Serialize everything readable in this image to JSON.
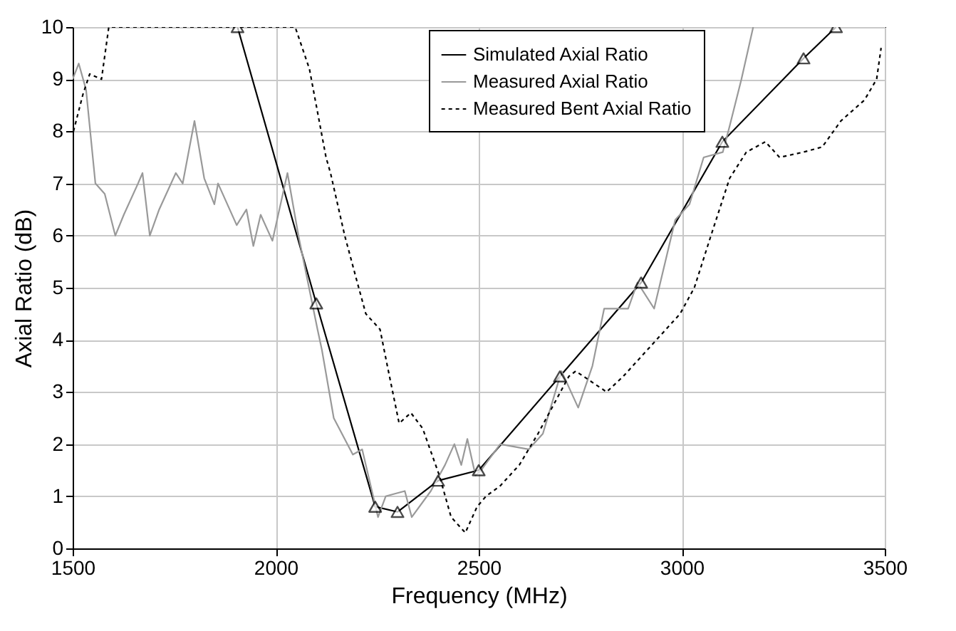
{
  "chart_data": {
    "type": "line",
    "xlabel": "Frequency (MHz)",
    "ylabel": "Axial Ratio (dB)",
    "xlim": [
      1500,
      3500
    ],
    "xticks": [
      1500,
      2000,
      2500,
      3000,
      3500
    ],
    "ylim": [
      0,
      10
    ],
    "yticks": [
      0,
      1,
      2,
      3,
      4,
      5,
      6,
      7,
      8,
      9,
      10
    ],
    "grid": true,
    "legend": "top right",
    "series": [
      {
        "name": "Simulated Axial Ratio",
        "color": "#000000",
        "line_style": "solid",
        "marker": "triangle",
        "x": [
          1906,
          2100,
          2245,
          2300,
          2400,
          2500,
          2700,
          2900,
          3100,
          3300,
          3380
        ],
        "values": [
          10,
          4.7,
          0.8,
          0.7,
          1.3,
          1.5,
          3.3,
          5.1,
          7.8,
          9.4,
          10
        ]
      },
      {
        "name": "Measured Axial Ratio",
        "color": "#999999",
        "line_style": "solid",
        "marker": "none",
        "x": [
          1500,
          1515,
          1533,
          1556,
          1579,
          1605,
          1626,
          1661,
          1672,
          1690,
          1713,
          1754,
          1771,
          1800,
          1824,
          1849,
          1858,
          1904,
          1928,
          1945,
          1963,
          1992,
          2029,
          2056,
          2103,
          2114,
          2143,
          2190,
          2213,
          2252,
          2271,
          2318,
          2335,
          2382,
          2417,
          2440,
          2457,
          2472,
          2492,
          2506,
          2553,
          2623,
          2658,
          2704,
          2745,
          2780,
          2809,
          2868,
          2891,
          2932,
          2984,
          3019,
          3054,
          3101,
          3118,
          3147,
          3176
        ],
        "values": [
          9.0,
          9.3,
          8.8,
          7.0,
          6.8,
          6.0,
          6.4,
          7.0,
          7.2,
          6.0,
          6.5,
          7.2,
          7.0,
          8.2,
          7.1,
          6.6,
          7.0,
          6.2,
          6.5,
          5.8,
          6.4,
          5.9,
          7.2,
          6.0,
          4.2,
          3.8,
          2.5,
          1.8,
          1.9,
          0.6,
          1.0,
          1.1,
          0.6,
          1.1,
          1.6,
          2.0,
          1.6,
          2.1,
          1.4,
          1.5,
          2.0,
          1.9,
          2.2,
          3.4,
          2.7,
          3.5,
          4.6,
          4.6,
          5.1,
          4.6,
          6.3,
          6.6,
          7.5,
          7.6,
          8.1,
          9.0,
          10
        ]
      },
      {
        "name": "Measured Bent Axial Ratio",
        "color": "#000000",
        "line_style": "dotted",
        "marker": "none",
        "x": [
          1502,
          1525,
          1542,
          1571,
          1589,
          2048,
          2083,
          2124,
          2135,
          2170,
          2201,
          2222,
          2257,
          2275,
          2304,
          2333,
          2362,
          2403,
          2432,
          2467,
          2496,
          2518,
          2553,
          2600,
          2646,
          2722,
          2739,
          2815,
          2856,
          2926,
          2996,
          3031,
          3072,
          3118,
          3159,
          3206,
          3241,
          3299,
          3346,
          3392,
          3450,
          3480,
          3491
        ],
        "values": [
          8.0,
          8.7,
          9.1,
          9.0,
          10,
          10,
          9.2,
          7.5,
          7.2,
          6.0,
          5.1,
          4.5,
          4.2,
          3.5,
          2.4,
          2.6,
          2.3,
          1.4,
          0.6,
          0.3,
          0.8,
          1.0,
          1.2,
          1.6,
          2.2,
          3.3,
          3.4,
          3.0,
          3.3,
          3.9,
          4.5,
          5.0,
          6.0,
          7.1,
          7.6,
          7.8,
          7.5,
          7.6,
          7.7,
          8.2,
          8.6,
          9.0,
          9.6
        ]
      }
    ]
  }
}
